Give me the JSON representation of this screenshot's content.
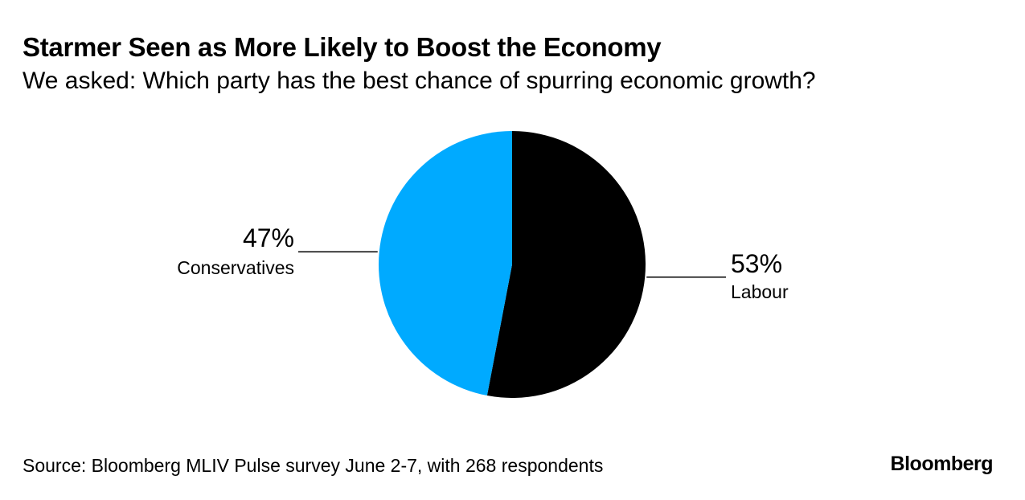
{
  "header": {
    "title": "Starmer Seen as More Likely to Boost the Economy",
    "subtitle": "We asked: Which party has the best chance of spurring economic growth?"
  },
  "chart_data": {
    "type": "pie",
    "title": "Starmer Seen as More Likely to Boost the Economy",
    "subtitle": "We asked: Which party has the best chance of spurring economic growth?",
    "slices": [
      {
        "label": "Labour",
        "value": 53,
        "display": "53%",
        "color": "#000000"
      },
      {
        "label": "Conservatives",
        "value": 47,
        "display": "47%",
        "color": "#00aaff"
      }
    ]
  },
  "footer": {
    "source": "Source: Bloomberg MLIV Pulse survey June 2-7, with 268 respondents",
    "brand": "Bloomberg"
  }
}
